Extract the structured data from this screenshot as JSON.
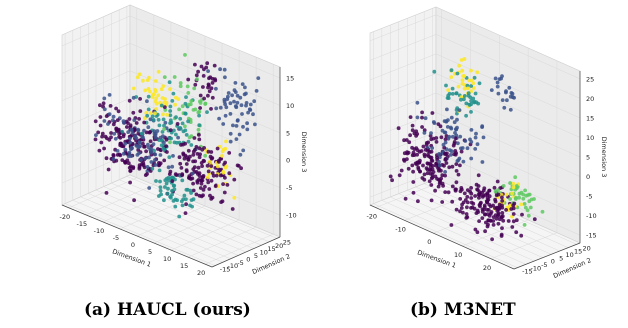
{
  "chart_data": [
    {
      "type": "scatter",
      "caption": "(a) HAUCL (ours)",
      "xlabel": "Dimension 1",
      "ylabel": "Dimension 2",
      "zlabel": "Dimension 3",
      "xticks": [
        -20,
        -15,
        -10,
        -5,
        0,
        5,
        10,
        15,
        20
      ],
      "yticks": [
        -15,
        -10,
        -5,
        0,
        5,
        10,
        15,
        20,
        25
      ],
      "zticks": [
        -10,
        -5,
        0,
        5,
        10,
        15
      ],
      "xlim": [
        -22,
        22
      ],
      "ylim": [
        -17,
        27
      ],
      "zlim": [
        -14,
        17
      ],
      "colormap": "viridis",
      "clusters": [
        {
          "color": "#440154",
          "x": -12,
          "y": 5,
          "z": -3,
          "spread": [
            5,
            4,
            3
          ],
          "n": 170
        },
        {
          "color": "#3b528b",
          "x": -6,
          "y": -2,
          "z": 0,
          "spread": [
            5,
            5,
            3
          ],
          "n": 90
        },
        {
          "color": "#21918c",
          "x": -2,
          "y": 8,
          "z": 3,
          "spread": [
            4,
            4,
            3
          ],
          "n": 70
        },
        {
          "color": "#5ec962",
          "x": 2,
          "y": 12,
          "z": 6,
          "spread": [
            3,
            3,
            3
          ],
          "n": 40
        },
        {
          "color": "#fde725",
          "x": -7,
          "y": 10,
          "z": 6,
          "spread": [
            3,
            3,
            2
          ],
          "n": 40
        },
        {
          "color": "#440154",
          "x": 10,
          "y": 2,
          "z": -2,
          "spread": [
            5,
            4,
            3
          ],
          "n": 140
        },
        {
          "color": "#21918c",
          "x": 5,
          "y": -5,
          "z": -6,
          "spread": [
            3,
            3,
            2
          ],
          "n": 50
        },
        {
          "color": "#fde725",
          "x": 14,
          "y": 5,
          "z": 0,
          "spread": [
            2,
            2,
            2
          ],
          "n": 25
        },
        {
          "color": "#3b528b",
          "x": 15,
          "y": 15,
          "z": 9,
          "spread": [
            3,
            2,
            3
          ],
          "n": 60
        },
        {
          "color": "#440154",
          "x": 5,
          "y": 18,
          "z": 11,
          "spread": [
            2,
            2,
            2
          ],
          "n": 30
        }
      ]
    },
    {
      "type": "scatter",
      "caption": "(b) M3NET",
      "xlabel": "Dimension 1",
      "ylabel": "Dimension 2",
      "zlabel": "Dimension 3",
      "xticks": [
        -20,
        -10,
        0,
        10,
        20
      ],
      "yticks": [
        -15,
        -10,
        -5,
        0,
        5,
        10,
        15,
        20
      ],
      "zticks": [
        -15,
        -10,
        -5,
        0,
        5,
        10,
        15,
        20,
        25
      ],
      "xlim": [
        -22,
        28
      ],
      "ylim": [
        -17,
        22
      ],
      "zlim": [
        -17,
        27
      ],
      "colormap": "viridis",
      "clusters": [
        {
          "color": "#440154",
          "x": -12,
          "y": 0,
          "z": -5,
          "spread": [
            5,
            5,
            4
          ],
          "n": 170
        },
        {
          "color": "#3b528b",
          "x": -6,
          "y": 4,
          "z": 2,
          "spread": [
            4,
            4,
            4
          ],
          "n": 70
        },
        {
          "color": "#21918c",
          "x": -4,
          "y": 8,
          "z": 12,
          "spread": [
            3,
            3,
            3
          ],
          "n": 40
        },
        {
          "color": "#fde725",
          "x": -6,
          "y": 10,
          "z": 14,
          "spread": [
            2,
            2,
            3
          ],
          "n": 30
        },
        {
          "color": "#440154",
          "x": 12,
          "y": -6,
          "z": -8,
          "spread": [
            6,
            4,
            3
          ],
          "n": 160
        },
        {
          "color": "#5ec962",
          "x": 20,
          "y": 0,
          "z": -4,
          "spread": [
            3,
            3,
            2
          ],
          "n": 40
        },
        {
          "color": "#fde725",
          "x": 17,
          "y": -2,
          "z": -6,
          "spread": [
            2,
            2,
            2
          ],
          "n": 25
        },
        {
          "color": "#3b528b",
          "x": 10,
          "y": 8,
          "z": 19,
          "spread": [
            2,
            2,
            2
          ],
          "n": 20
        }
      ]
    }
  ]
}
